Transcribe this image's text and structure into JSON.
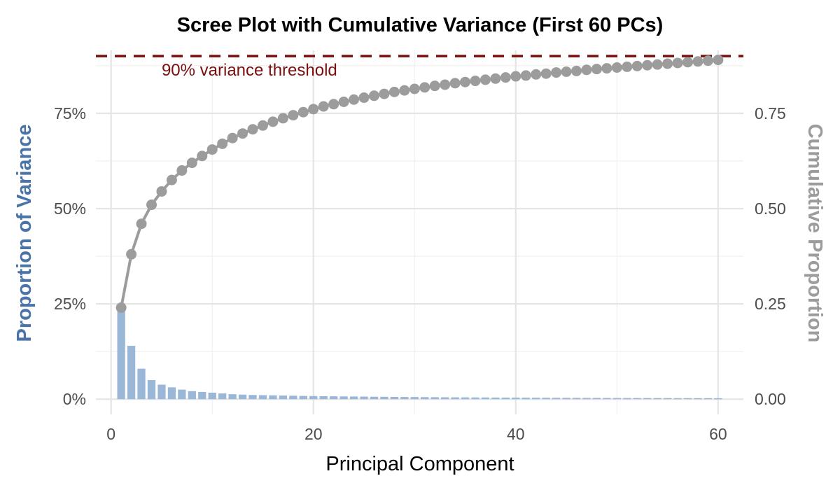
{
  "chart_data": {
    "type": "bar",
    "title": "Scree Plot with Cumulative Variance (First 60 PCs)",
    "xlabel": "Principal Component",
    "ylabel": "Proportion of Variance",
    "y2label": "Cumulative Proportion",
    "xlim": [
      -1.5,
      62.5
    ],
    "xticks": [
      0,
      20,
      40,
      60
    ],
    "ylim": [
      -0.04,
      0.915
    ],
    "yticks_left": [
      "0%",
      "25%",
      "50%",
      "75%"
    ],
    "yticks_right": [
      "0.00",
      "0.25",
      "0.50",
      "0.75"
    ],
    "ytick_values": [
      0,
      0.25,
      0.5,
      0.75
    ],
    "threshold": {
      "value": 0.9,
      "label": "90% variance threshold",
      "label_x": 5
    },
    "grid": true,
    "legend": "none",
    "colors": {
      "bars": "#9bb7d8",
      "cumulative": "#9c9c9c",
      "threshold": "#7a0f0f",
      "ylabel_left": "#4a74a8",
      "ylabel_right": "#9c9c9c"
    },
    "series": [
      {
        "kind": "bar",
        "x": [
          1,
          2,
          3,
          4,
          5,
          6,
          7,
          8,
          9,
          10,
          11,
          12,
          13,
          14,
          15,
          16,
          17,
          18,
          19,
          20,
          21,
          22,
          23,
          24,
          25,
          26,
          27,
          28,
          29,
          30,
          31,
          32,
          33,
          34,
          35,
          36,
          37,
          38,
          39,
          40,
          41,
          42,
          43,
          44,
          45,
          46,
          47,
          48,
          49,
          50,
          51,
          52,
          53,
          54,
          55,
          56,
          57,
          58,
          59,
          60
        ],
        "values": [
          0.24,
          0.14,
          0.08,
          0.05,
          0.038,
          0.031,
          0.025,
          0.021,
          0.019,
          0.017,
          0.015,
          0.013,
          0.012,
          0.011,
          0.0105,
          0.01,
          0.0095,
          0.009,
          0.0085,
          0.0082,
          0.0078,
          0.0075,
          0.0072,
          0.007,
          0.0067,
          0.0064,
          0.0062,
          0.006,
          0.0058,
          0.0056,
          0.0054,
          0.0052,
          0.005,
          0.0048,
          0.0047,
          0.0045,
          0.0044,
          0.0042,
          0.0041,
          0.004,
          0.0039,
          0.0038,
          0.0037,
          0.0036,
          0.0035,
          0.0034,
          0.0033,
          0.0032,
          0.0031,
          0.003,
          0.003,
          0.0029,
          0.0029,
          0.0028,
          0.0028,
          0.0027,
          0.0027,
          0.0026,
          0.0026,
          0.0025
        ]
      },
      {
        "kind": "line",
        "x": [
          1,
          2,
          3,
          4,
          5,
          6,
          7,
          8,
          9,
          10,
          11,
          12,
          13,
          14,
          15,
          16,
          17,
          18,
          19,
          20,
          21,
          22,
          23,
          24,
          25,
          26,
          27,
          28,
          29,
          30,
          31,
          32,
          33,
          34,
          35,
          36,
          37,
          38,
          39,
          40,
          41,
          42,
          43,
          44,
          45,
          46,
          47,
          48,
          49,
          50,
          51,
          52,
          53,
          54,
          55,
          56,
          57,
          58,
          59,
          60
        ],
        "values": [
          0.24,
          0.38,
          0.46,
          0.51,
          0.545,
          0.575,
          0.6,
          0.62,
          0.638,
          0.655,
          0.67,
          0.685,
          0.697,
          0.708,
          0.718,
          0.728,
          0.737,
          0.745,
          0.753,
          0.761,
          0.768,
          0.774,
          0.78,
          0.786,
          0.791,
          0.796,
          0.801,
          0.806,
          0.81,
          0.814,
          0.818,
          0.822,
          0.825,
          0.829,
          0.832,
          0.835,
          0.838,
          0.841,
          0.844,
          0.847,
          0.849,
          0.852,
          0.854,
          0.857,
          0.859,
          0.861,
          0.864,
          0.866,
          0.868,
          0.87,
          0.872,
          0.874,
          0.876,
          0.878,
          0.88,
          0.882,
          0.884,
          0.886,
          0.888,
          0.89
        ]
      }
    ]
  }
}
